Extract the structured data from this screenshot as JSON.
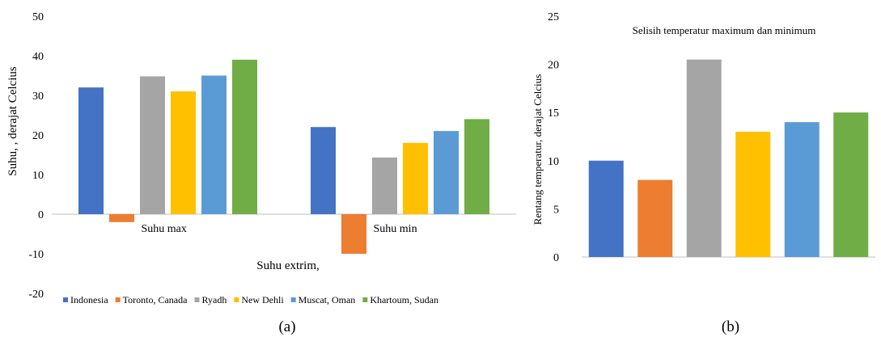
{
  "chart_data": [
    {
      "type": "bar",
      "panel_label": "(a)",
      "xlabel": "Suhu extrim,",
      "ylabel": "Suhu, , derajat Celcius",
      "ylim": [
        -20,
        50
      ],
      "yticks": [
        -20,
        -10,
        0,
        10,
        20,
        30,
        40,
        50
      ],
      "grid": false,
      "legend_position": "bottom",
      "categories": [
        "Suhu max",
        "Suhu min"
      ],
      "series": [
        {
          "name": "Indonesia",
          "color": "#4472C4",
          "values": [
            32,
            22
          ]
        },
        {
          "name": "Toronto, Canada",
          "color": "#ED7D31",
          "values": [
            -2,
            -10
          ]
        },
        {
          "name": "Ryadh",
          "color": "#A5A5A5",
          "values": [
            34.8,
            14.3
          ]
        },
        {
          "name": "New Dehli",
          "color": "#FFC000",
          "values": [
            31,
            18
          ]
        },
        {
          "name": "Muscat, Oman",
          "color": "#5B9BD5",
          "values": [
            35,
            21
          ]
        },
        {
          "name": "Khartoum, Sudan",
          "color": "#70AD47",
          "values": [
            39,
            24
          ]
        }
      ]
    },
    {
      "type": "bar",
      "panel_label": "(b)",
      "title": "Selisih  temperatur  maximum dan minimum",
      "ylabel": "Rentang temperatur, derajat Celcius",
      "ylim": [
        0,
        25
      ],
      "yticks": [
        0,
        5,
        10,
        15,
        20,
        25
      ],
      "grid": false,
      "categories": [
        "Indonesia",
        "Toronto, Canada",
        "Ryadh",
        "New Dehli",
        "Muscat, Oman",
        "Khartoum, Sudan"
      ],
      "colors": [
        "#4472C4",
        "#ED7D31",
        "#A5A5A5",
        "#FFC000",
        "#5B9BD5",
        "#70AD47"
      ],
      "values": [
        10,
        8,
        20.5,
        13,
        14,
        15
      ]
    }
  ]
}
